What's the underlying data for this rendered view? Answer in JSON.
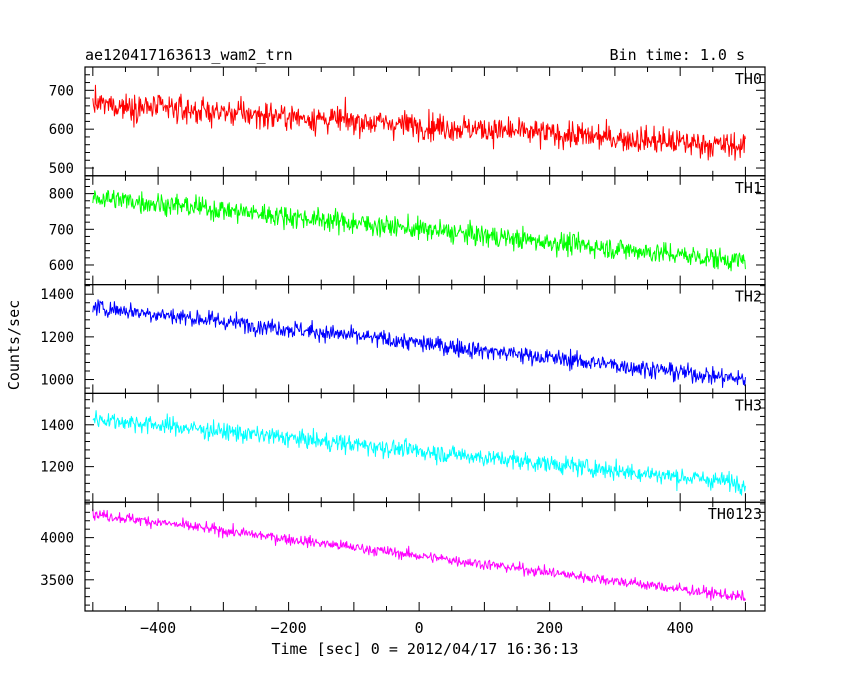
{
  "chart_data": {
    "type": "line",
    "title": "ae120417163613_wam2_trn",
    "subtitle": "Bin time: 1.0 s",
    "xlabel": "Time [sec] 0 = 2012/04/17 16:36:13",
    "ylabel": "Counts/sec",
    "xlim": [
      -512,
      530
    ],
    "x_range_data": [
      -500,
      500
    ],
    "x_ticks": [
      -400,
      -200,
      0,
      200,
      400
    ],
    "x_tick_labels": [
      "−400",
      "−200",
      "0",
      "200",
      "400"
    ],
    "grid": false,
    "series": [
      {
        "name": "TH0",
        "color": "#ff0000",
        "ylim": [
          480,
          760
        ],
        "y_ticks": [
          500,
          600,
          700
        ],
        "y_tick_labels": [
          "500",
          "600",
          "700"
        ],
        "trend_start": 665,
        "trend_end": 555,
        "noise": 32
      },
      {
        "name": "TH1",
        "color": "#00ff00",
        "ylim": [
          545,
          850
        ],
        "y_ticks": [
          600,
          700,
          800
        ],
        "y_tick_labels": [
          "600",
          "700",
          "800"
        ],
        "trend_start": 790,
        "trend_end": 610,
        "noise": 28
      },
      {
        "name": "TH2",
        "color": "#0000ff",
        "ylim": [
          935,
          1445
        ],
        "y_ticks": [
          1000,
          1200,
          1400
        ],
        "y_tick_labels": [
          "1000",
          "1200",
          "1400"
        ],
        "trend_start": 1340,
        "trend_end": 1000,
        "noise": 38
      },
      {
        "name": "TH3",
        "color": "#00ffff",
        "ylim": [
          1030,
          1550
        ],
        "y_ticks": [
          1200,
          1400
        ],
        "y_tick_labels": [
          "1200",
          "1400"
        ],
        "trend_start": 1430,
        "trend_end": 1120,
        "noise": 40
      },
      {
        "name": "TH0123",
        "color": "#ff00ff",
        "ylim": [
          3130,
          4420
        ],
        "y_ticks": [
          3500,
          4000
        ],
        "y_tick_labels": [
          "3500",
          "4000"
        ],
        "trend_start": 4280,
        "trend_end": 3290,
        "noise": 60
      }
    ]
  }
}
